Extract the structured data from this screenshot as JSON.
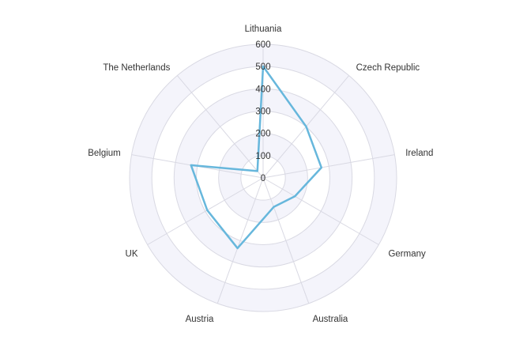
{
  "chart_data": {
    "type": "radar",
    "categories": [
      "Lithuania",
      "Czech Republic",
      "Ireland",
      "Germany",
      "Australia",
      "Austria",
      "UK",
      "Belgium",
      "The Netherlands"
    ],
    "series": [
      {
        "values": [
          501,
          301,
          266,
          165,
          139,
          336,
          290,
          329,
          40
        ]
      }
    ],
    "rlim": [
      0,
      600
    ],
    "ticks": [
      0,
      100,
      200,
      300,
      400,
      500,
      600
    ],
    "grid": true,
    "colors": {
      "series": "#67b7dc",
      "band": "#f4f4fb",
      "grid": "#d9d9e3"
    }
  }
}
